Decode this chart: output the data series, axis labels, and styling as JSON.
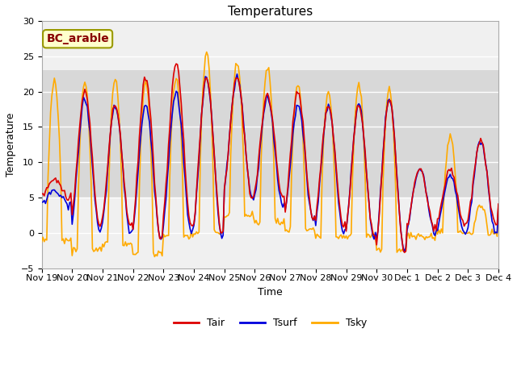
{
  "title": "Temperatures",
  "xlabel": "Time",
  "ylabel": "Temperature",
  "ylim": [
    -5,
    30
  ],
  "yticks": [
    -5,
    0,
    5,
    10,
    15,
    20,
    25,
    30
  ],
  "bg_color": "#f0f0f0",
  "shaded_band": [
    5,
    23
  ],
  "shaded_color": "#d8d8d8",
  "line_colors": {
    "Tair": "#dd0000",
    "Tsurf": "#0000dd",
    "Tsky": "#ffaa00"
  },
  "line_widths": {
    "Tair": 1.2,
    "Tsurf": 1.2,
    "Tsky": 1.2
  },
  "legend_label": "BC_arable",
  "legend_box_color": "#ffffcc",
  "legend_border_color": "#999900",
  "legend_text_color": "#880000",
  "x_tick_labels": [
    "Nov 19",
    "Nov 20",
    "Nov 21",
    "Nov 22",
    "Nov 23",
    "Nov 24",
    "Nov 25",
    "Nov 26",
    "Nov 27",
    "Nov 28",
    "Nov 29",
    "Nov 30",
    "Dec 1",
    "Dec 2",
    "Dec 3",
    "Dec 4"
  ],
  "x_tick_positions": [
    0,
    24,
    48,
    72,
    96,
    120,
    144,
    168,
    192,
    216,
    240,
    264,
    288,
    312,
    336,
    360
  ],
  "tair_daily": {
    "max": [
      7.5,
      20,
      18,
      22,
      24,
      22,
      22,
      19.5,
      20,
      18,
      18,
      19,
      9,
      9,
      13,
      5
    ],
    "min": [
      5,
      1,
      1,
      -1,
      1,
      0,
      5,
      5,
      2,
      1,
      -0.5,
      -3,
      0.5,
      1,
      1,
      4
    ]
  },
  "tsurf_daily": {
    "max": [
      6,
      19,
      18,
      18,
      20,
      22,
      22,
      19,
      18,
      18,
      18,
      19,
      9,
      8,
      13,
      5
    ],
    "min": [
      4,
      0,
      0,
      -0.5,
      0,
      -0.5,
      5,
      4,
      2,
      0,
      -0.5,
      -2.5,
      0,
      0,
      0,
      4
    ]
  },
  "tsky_daily": {
    "max": [
      21.5,
      21.5,
      22,
      21.5,
      22,
      25.5,
      24,
      23.5,
      21,
      20,
      21,
      20.5,
      -0.5,
      13.5,
      4,
      4
    ],
    "min": [
      -1,
      -2.5,
      -1.5,
      -3,
      -0.5,
      0,
      2.5,
      1.5,
      0.5,
      -0.5,
      -0.5,
      -2.5,
      -0.5,
      0,
      0,
      4
    ]
  }
}
